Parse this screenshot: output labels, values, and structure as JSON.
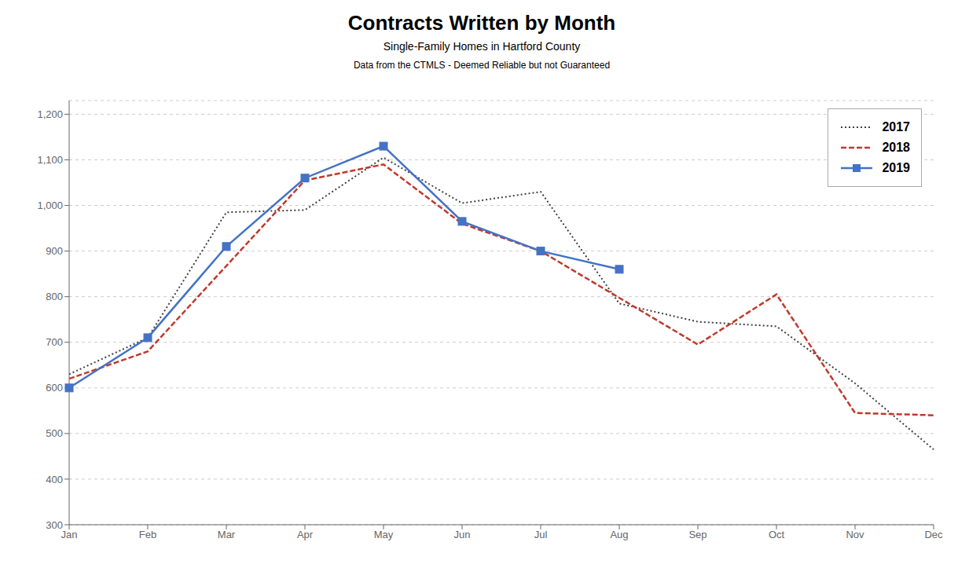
{
  "chart_data": {
    "type": "line",
    "title": "Contracts Written by Month",
    "subtitle": [
      "Single-Family Homes in Hartford County",
      "Data from the CTMLS - Deemed Reliable but not Guaranteed"
    ],
    "categories": [
      "Jan",
      "Feb",
      "Mar",
      "Apr",
      "May",
      "Jun",
      "Jul",
      "Aug",
      "Sep",
      "Oct",
      "Nov",
      "Dec"
    ],
    "series": [
      {
        "name": "2017",
        "color": "#404040",
        "values": [
          630,
          710,
          985,
          990,
          1105,
          1005,
          1030,
          785,
          745,
          735,
          610,
          465
        ],
        "line_style": "dotted",
        "marker": "none"
      },
      {
        "name": "2018",
        "color": "#c0392b",
        "values": [
          620,
          680,
          null,
          1055,
          1090,
          960,
          900,
          null,
          695,
          805,
          545,
          540
        ],
        "line_style": "dashed",
        "marker": "none"
      },
      {
        "name": "2019",
        "color": "#4472c4",
        "values": [
          600,
          710,
          910,
          1060,
          1130,
          965,
          900,
          860,
          null,
          null,
          null,
          null
        ],
        "line_style": "solid",
        "marker": "square"
      }
    ],
    "ylim": [
      300,
      1230
    ],
    "yticks": [
      300,
      400,
      500,
      600,
      700,
      800,
      900,
      {
        "value": 1000,
        "label": "1,000"
      },
      {
        "value": 1100,
        "label": "1,100"
      },
      {
        "value": 1200,
        "label": "1,200"
      }
    ],
    "grid": true,
    "legend": "upper right"
  }
}
